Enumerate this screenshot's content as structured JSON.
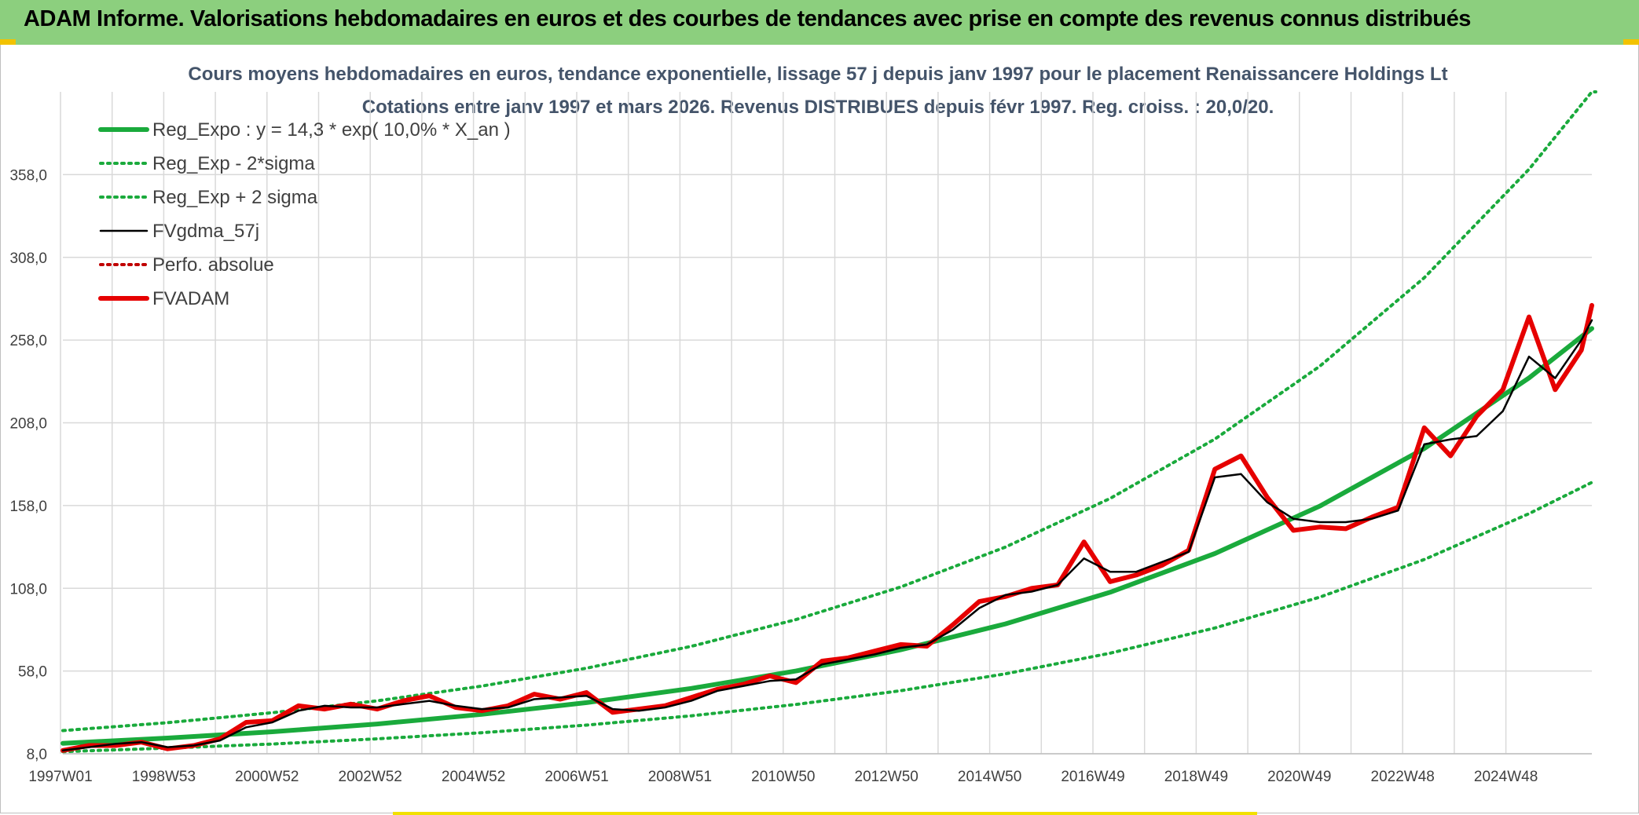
{
  "header": {
    "title": "ADAM Informe. Valorisations hebdomadaires en euros et des courbes de tendances avec prise en compte des revenus connus distribués"
  },
  "chart_data": {
    "type": "line",
    "title_line1": "Cours moyens hebdomadaires en euros, tendance exponentielle, lissage 57 j depuis janv 1997 pour le placement Renaissancere Holdings Lt",
    "title_line2": "Cotations entre janv 1997 et mars 2026. Revenus DISTRIBUES depuis févr 1997. Reg. croiss. : 20,0/20.",
    "xlabel": "",
    "ylabel": "",
    "x_range": [
      1997.0,
      2026.2
    ],
    "ylim": [
      8.0,
      408.0
    ],
    "y_ticks": [
      "8,0",
      "58,0",
      "108,0",
      "158,0",
      "208,0",
      "258,0",
      "308,0",
      "358,0"
    ],
    "x_tick_labels": [
      "1997W01",
      "1998W53",
      "2000W52",
      "2002W52",
      "2004W52",
      "2006W51",
      "2008W51",
      "2010W50",
      "2012W50",
      "2014W50",
      "2016W49",
      "2018W49",
      "2020W49",
      "2022W48",
      "2024W48"
    ],
    "grid": true,
    "legend_position": "top-left",
    "legend": [
      {
        "name": "Reg_Expo : y = 14,3 * exp( 10,0% *  X_an )",
        "color": "#1aaa3c",
        "style": "solid-thick"
      },
      {
        "name": "Reg_Exp - 2*sigma",
        "color": "#1aaa3c",
        "style": "dotted"
      },
      {
        "name": "Reg_Exp + 2 sigma",
        "color": "#1aaa3c",
        "style": "dotted"
      },
      {
        "name": "FVgdma_57j",
        "color": "#000000",
        "style": "solid"
      },
      {
        "name": "Perfo. absolue",
        "color": "#c00000",
        "style": "dotted"
      },
      {
        "name": "FVADAM",
        "color": "#e60000",
        "style": "solid-thick"
      }
    ],
    "series": [
      {
        "name": "Reg_Expo : y = 14,3 * exp( 10,0% *  X_an )",
        "x": [
          1997.0,
          1999.0,
          2001.0,
          2003.0,
          2005.0,
          2007.0,
          2009.0,
          2011.0,
          2013.0,
          2015.0,
          2017.0,
          2019.0,
          2021.0,
          2023.0,
          2025.0,
          2026.2
        ],
        "values": [
          14.3,
          17.5,
          21.3,
          26.0,
          31.8,
          38.9,
          47.5,
          58.0,
          70.8,
          86.5,
          105.6,
          129.0,
          157.6,
          192.5,
          235.1,
          265.0
        ]
      },
      {
        "name": "Reg_Exp - 2*sigma",
        "x": [
          1997.0,
          1999.0,
          2001.0,
          2003.0,
          2005.0,
          2007.0,
          2009.0,
          2011.0,
          2013.0,
          2015.0,
          2017.0,
          2019.0,
          2021.0,
          2023.0,
          2025.0,
          2026.2
        ],
        "values": [
          9.3,
          11.4,
          13.9,
          17.0,
          20.7,
          25.3,
          30.9,
          37.8,
          46.1,
          56.3,
          68.8,
          84.0,
          102.6,
          125.4,
          153.1,
          172.0
        ]
      },
      {
        "name": "Reg_Exp + 2 sigma",
        "x": [
          1997.0,
          1999.0,
          2001.0,
          2003.0,
          2005.0,
          2007.0,
          2009.0,
          2011.0,
          2013.0,
          2015.0,
          2017.0,
          2019.0,
          2021.0,
          2023.0,
          2025.0,
          2026.2
        ],
        "values": [
          22.0,
          26.8,
          32.8,
          40.0,
          48.9,
          59.7,
          72.9,
          89.1,
          108.8,
          132.9,
          162.3,
          198.2,
          242.1,
          295.7,
          361.2,
          408.0
        ]
      },
      {
        "name": "FVgdma_57j",
        "x": [
          1997.0,
          1997.5,
          1998.0,
          1998.5,
          1999.0,
          1999.5,
          2000.0,
          2000.5,
          2001.0,
          2001.5,
          2002.0,
          2002.5,
          2003.0,
          2003.5,
          2004.0,
          2004.5,
          2005.0,
          2005.5,
          2006.0,
          2006.5,
          2007.0,
          2007.5,
          2008.0,
          2008.5,
          2009.0,
          2009.5,
          2010.0,
          2010.5,
          2011.0,
          2011.5,
          2012.0,
          2012.5,
          2013.0,
          2013.5,
          2014.0,
          2014.5,
          2015.0,
          2015.5,
          2016.0,
          2016.5,
          2017.0,
          2017.5,
          2018.0,
          2018.5,
          2019.0,
          2019.5,
          2020.0,
          2020.5,
          2021.0,
          2021.5,
          2022.0,
          2022.5,
          2023.0,
          2023.5,
          2024.0,
          2024.5,
          2025.0,
          2025.5,
          2026.0,
          2026.2
        ],
        "values": [
          10,
          12,
          14,
          15,
          12,
          13,
          16,
          24,
          27,
          34,
          37,
          36,
          36,
          38,
          40,
          37,
          35,
          36,
          41,
          42,
          43,
          35,
          34,
          36,
          40,
          46,
          49,
          52,
          53,
          62,
          65,
          68,
          72,
          74,
          83,
          96,
          104,
          106,
          110,
          126,
          118,
          118,
          124,
          130,
          175,
          177,
          160,
          150,
          148,
          148,
          150,
          155,
          195,
          198,
          200,
          215,
          248,
          235,
          258,
          270
        ]
      },
      {
        "name": "FVADAM",
        "x": [
          1997.0,
          1997.5,
          1998.0,
          1998.5,
          1999.0,
          1999.5,
          2000.0,
          2000.5,
          2001.0,
          2001.5,
          2002.0,
          2002.5,
          2003.0,
          2003.5,
          2004.0,
          2004.5,
          2005.0,
          2005.5,
          2006.0,
          2006.5,
          2007.0,
          2007.5,
          2008.0,
          2008.5,
          2009.0,
          2009.5,
          2010.0,
          2010.5,
          2011.0,
          2011.5,
          2012.0,
          2012.5,
          2013.0,
          2013.5,
          2014.0,
          2014.5,
          2015.0,
          2015.5,
          2016.0,
          2016.5,
          2017.0,
          2017.5,
          2018.0,
          2018.5,
          2019.0,
          2019.5,
          2020.0,
          2020.5,
          2021.0,
          2021.5,
          2022.0,
          2022.5,
          2023.0,
          2023.5,
          2024.0,
          2024.5,
          2025.0,
          2025.5,
          2026.0,
          2026.2
        ],
        "values": [
          10,
          13,
          13,
          15,
          11,
          13,
          17,
          27,
          28,
          37,
          35,
          38,
          35,
          40,
          43,
          36,
          34,
          37,
          44,
          41,
          45,
          33,
          35,
          37,
          42,
          47,
          50,
          55,
          51,
          64,
          66,
          70,
          74,
          73,
          86,
          100,
          103,
          108,
          110,
          136,
          112,
          116,
          122,
          131,
          180,
          188,
          163,
          143,
          145,
          144,
          151,
          157,
          205,
          188,
          212,
          228,
          272,
          228,
          252,
          279
        ]
      }
    ]
  }
}
